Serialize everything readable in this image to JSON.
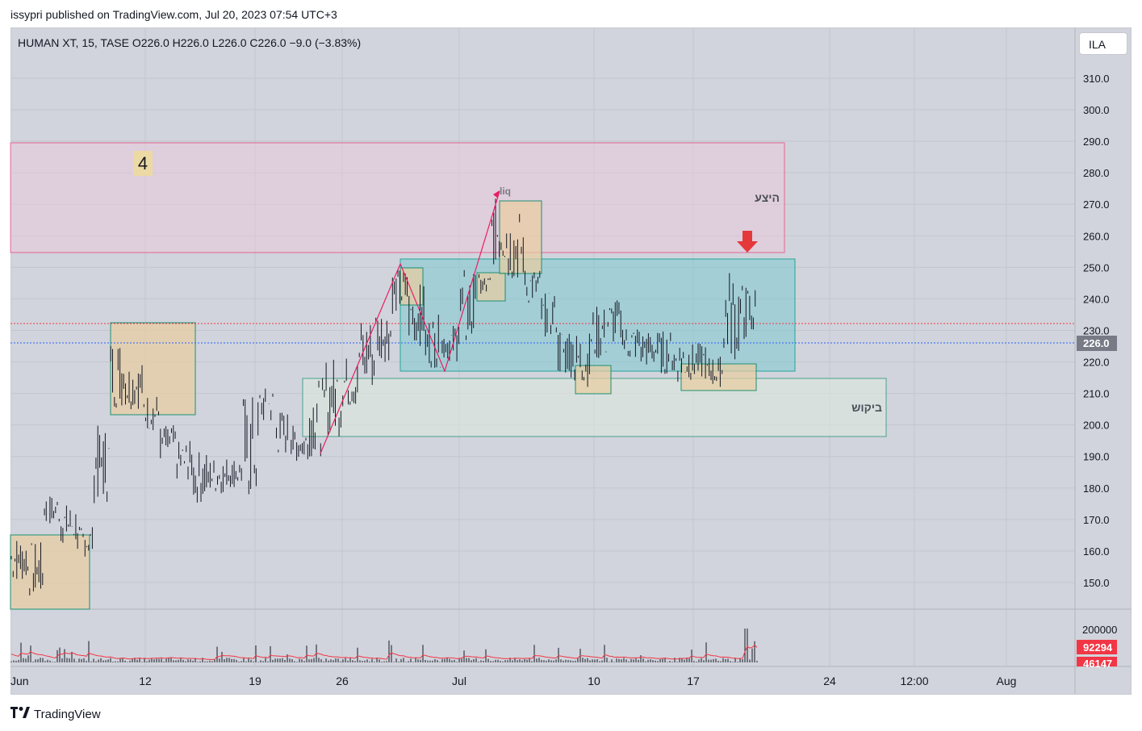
{
  "header": {
    "publish_line": "issypri published on TradingView.com, Jul 20, 2023 07:54 UTC+3"
  },
  "legend": {
    "symbol_line": "HUMAN XT, 15, TASE  O226.0  H226.0  L226.0  C226.0  −9.0 (−3.83%)"
  },
  "toolbar": {
    "currency": "ILA"
  },
  "annotations": {
    "wave_number": "4",
    "supply_label": "היצע",
    "demand_label": "ביקוש",
    "liq_label": "liq"
  },
  "price_scale": {
    "ticks": [
      "310.0",
      "300.0",
      "290.0",
      "280.0",
      "270.0",
      "260.0",
      "250.0",
      "240.0",
      "230.0",
      "220.0",
      "210.0",
      "200.0",
      "190.0",
      "180.0",
      "170.0",
      "160.0",
      "150.0"
    ],
    "last_price_label": "226.0"
  },
  "volume_scale": {
    "tick": "200000",
    "label_1": "92294",
    "label_2": "46147"
  },
  "time_axis": {
    "labels": [
      "Jun",
      "12",
      "19",
      "26",
      "Jul",
      "10",
      "17",
      "24",
      "12:00",
      "Aug"
    ]
  },
  "footer": {
    "brand": "TradingView"
  },
  "colors": {
    "background": "#d1d4dc",
    "candle": "#131722",
    "supply_zone": "#e91e63",
    "demand_zone": "#1b8f73",
    "range_box": "#26a69a",
    "orange_box": "#ff9800",
    "arrow": "#e5383b",
    "volume_ma": "#f23645",
    "last_price_bg": "#787b86"
  },
  "chart_data": {
    "type": "candlestick",
    "symbol": "HUMAN XT",
    "interval": "15",
    "exchange": "TASE",
    "last": {
      "open": 226.0,
      "high": 226.0,
      "low": 226.0,
      "close": 226.0,
      "change": -9.0,
      "change_pct": -3.83
    },
    "ylim": [
      140,
      316
    ],
    "volume_ylim": [
      0,
      230000
    ],
    "price_path": [
      [
        "Jun 6",
        150,
        165
      ],
      [
        "Jun 7",
        145,
        163
      ],
      [
        "Jun 8",
        168,
        178
      ],
      [
        "Jun 9",
        162,
        175
      ],
      [
        "Jun 10",
        158,
        168
      ],
      [
        "Jun 11",
        175,
        200
      ],
      [
        "Jun 12",
        205,
        228
      ],
      [
        "Jun 13",
        205,
        220
      ],
      [
        "Jun 14",
        198,
        210
      ],
      [
        "Jun 15",
        188,
        200
      ],
      [
        "Jun 16",
        182,
        195
      ],
      [
        "Jun 17",
        175,
        192
      ],
      [
        "Jun 18",
        178,
        190
      ],
      [
        "Jun 19",
        180,
        190
      ],
      [
        "Jun 20",
        175,
        210
      ],
      [
        "Jun 21",
        200,
        212
      ],
      [
        "Jun 22",
        190,
        205
      ],
      [
        "Jun 23",
        188,
        200
      ],
      [
        "Jun 24",
        190,
        215
      ],
      [
        "Jun 25",
        196,
        222
      ],
      [
        "Jun 26",
        205,
        222
      ],
      [
        "Jun 27",
        210,
        235
      ],
      [
        "Jun 28",
        220,
        238
      ],
      [
        "Jun 29",
        235,
        250
      ],
      [
        "Jun 30",
        225,
        245
      ],
      [
        "Jul 1",
        218,
        235
      ],
      [
        "Jul 2",
        220,
        232
      ],
      [
        "Jul 3",
        222,
        250
      ],
      [
        "Jul 4",
        240,
        248
      ],
      [
        "Jul 5",
        250,
        272
      ],
      [
        "Jul 6",
        245,
        268
      ],
      [
        "Jul 7",
        238,
        250
      ],
      [
        "Jul 8",
        228,
        242
      ],
      [
        "Jul 9",
        215,
        232
      ],
      [
        "Jul 10",
        212,
        230
      ],
      [
        "Jul 11",
        220,
        238
      ],
      [
        "Jul 12",
        225,
        240
      ],
      [
        "Jul 13",
        220,
        232
      ],
      [
        "Jul 14",
        218,
        230
      ],
      [
        "Jul 15",
        216,
        230
      ],
      [
        "Jul 16",
        213,
        228
      ],
      [
        "Jul 17",
        214,
        226
      ],
      [
        "Jul 18",
        212,
        222
      ],
      [
        "Jul 19",
        220,
        250
      ],
      [
        "Jul 20",
        226,
        245
      ]
    ],
    "volume_peaks": [
      200000,
      100000,
      85000
    ],
    "zones": [
      {
        "name": "supply",
        "label": "היצע",
        "price_range": [
          255,
          290
        ]
      },
      {
        "name": "demand",
        "label": "ביקוש",
        "price_range": [
          196,
          215
        ]
      },
      {
        "name": "range",
        "price_range": [
          217,
          253
        ]
      }
    ]
  }
}
